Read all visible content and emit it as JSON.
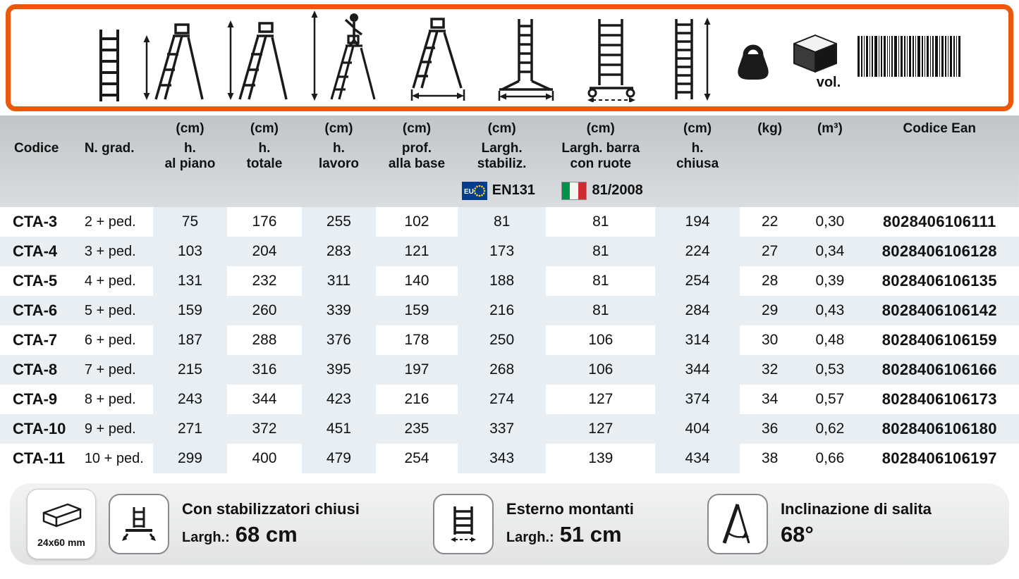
{
  "colors": {
    "accent_orange": "#e8590c"
  },
  "legend": {
    "vol_label": "vol.",
    "icons": [
      "straight-ladder",
      "stepladder-platform-height",
      "stepladder-total-height",
      "stepladder-working-height",
      "stepladder-base-depth",
      "ladder-stabilizer-width",
      "ladder-wheel-bar-width",
      "ladder-closed-height",
      "weight",
      "volume-box",
      "ean-barcode"
    ]
  },
  "table": {
    "columns": [
      {
        "line1": "",
        "line2": "Codice"
      },
      {
        "line1": "",
        "line2": "N. grad."
      },
      {
        "line1": "(cm)",
        "line2": "h.\nal piano"
      },
      {
        "line1": "(cm)",
        "line2": "h.\ntotale"
      },
      {
        "line1": "(cm)",
        "line2": "h.\nlavoro"
      },
      {
        "line1": "(cm)",
        "line2": "prof.\nalla base"
      },
      {
        "line1": "(cm)",
        "line2": "Largh.\nstabiliz."
      },
      {
        "line1": "(cm)",
        "line2": "Largh. barra\ncon ruote"
      },
      {
        "line1": "(cm)",
        "line2": "h.\nchiusa"
      },
      {
        "line1": "(kg)",
        "line2": ""
      },
      {
        "line1": "(m³)",
        "line2": ""
      },
      {
        "line1": "Codice Ean",
        "line2": ""
      }
    ],
    "certifications": [
      {
        "standard": "EN131",
        "flag": "eu-flag"
      },
      {
        "standard": "81/2008",
        "flag": "italy-flag"
      }
    ],
    "rows": [
      [
        "CTA-3",
        "2 + ped.",
        "75",
        "176",
        "255",
        "102",
        "81",
        "81",
        "194",
        "22",
        "0,30",
        "8028406106111"
      ],
      [
        "CTA-4",
        "3 + ped.",
        "103",
        "204",
        "283",
        "121",
        "173",
        "81",
        "224",
        "27",
        "0,34",
        "8028406106128"
      ],
      [
        "CTA-5",
        "4 + ped.",
        "131",
        "232",
        "311",
        "140",
        "188",
        "81",
        "254",
        "28",
        "0,39",
        "8028406106135"
      ],
      [
        "CTA-6",
        "5 + ped.",
        "159",
        "260",
        "339",
        "159",
        "216",
        "81",
        "284",
        "29",
        "0,43",
        "8028406106142"
      ],
      [
        "CTA-7",
        "6 + ped.",
        "187",
        "288",
        "376",
        "178",
        "250",
        "106",
        "314",
        "30",
        "0,48",
        "8028406106159"
      ],
      [
        "CTA-8",
        "7 + ped.",
        "215",
        "316",
        "395",
        "197",
        "268",
        "106",
        "344",
        "32",
        "0,53",
        "8028406106166"
      ],
      [
        "CTA-9",
        "8 + ped.",
        "243",
        "344",
        "423",
        "216",
        "274",
        "127",
        "374",
        "34",
        "0,57",
        "8028406106173"
      ],
      [
        "CTA-10",
        "9 + ped.",
        "271",
        "372",
        "451",
        "235",
        "337",
        "127",
        "404",
        "36",
        "0,62",
        "8028406106180"
      ],
      [
        "CTA-11",
        "10 + ped.",
        "299",
        "400",
        "479",
        "254",
        "343",
        "139",
        "434",
        "38",
        "0,66",
        "8028406106197"
      ]
    ]
  },
  "footer": {
    "profile": {
      "label": "24x60 mm"
    },
    "stabilizers": {
      "title": "Con stabilizzatori chiusi",
      "width_label": "Largh.:",
      "width_value": "68 cm"
    },
    "uprights": {
      "title": "Esterno montanti",
      "width_label": "Largh.:",
      "width_value": "51 cm"
    },
    "inclination": {
      "title": "Inclinazione di salita",
      "value": "68°"
    }
  }
}
